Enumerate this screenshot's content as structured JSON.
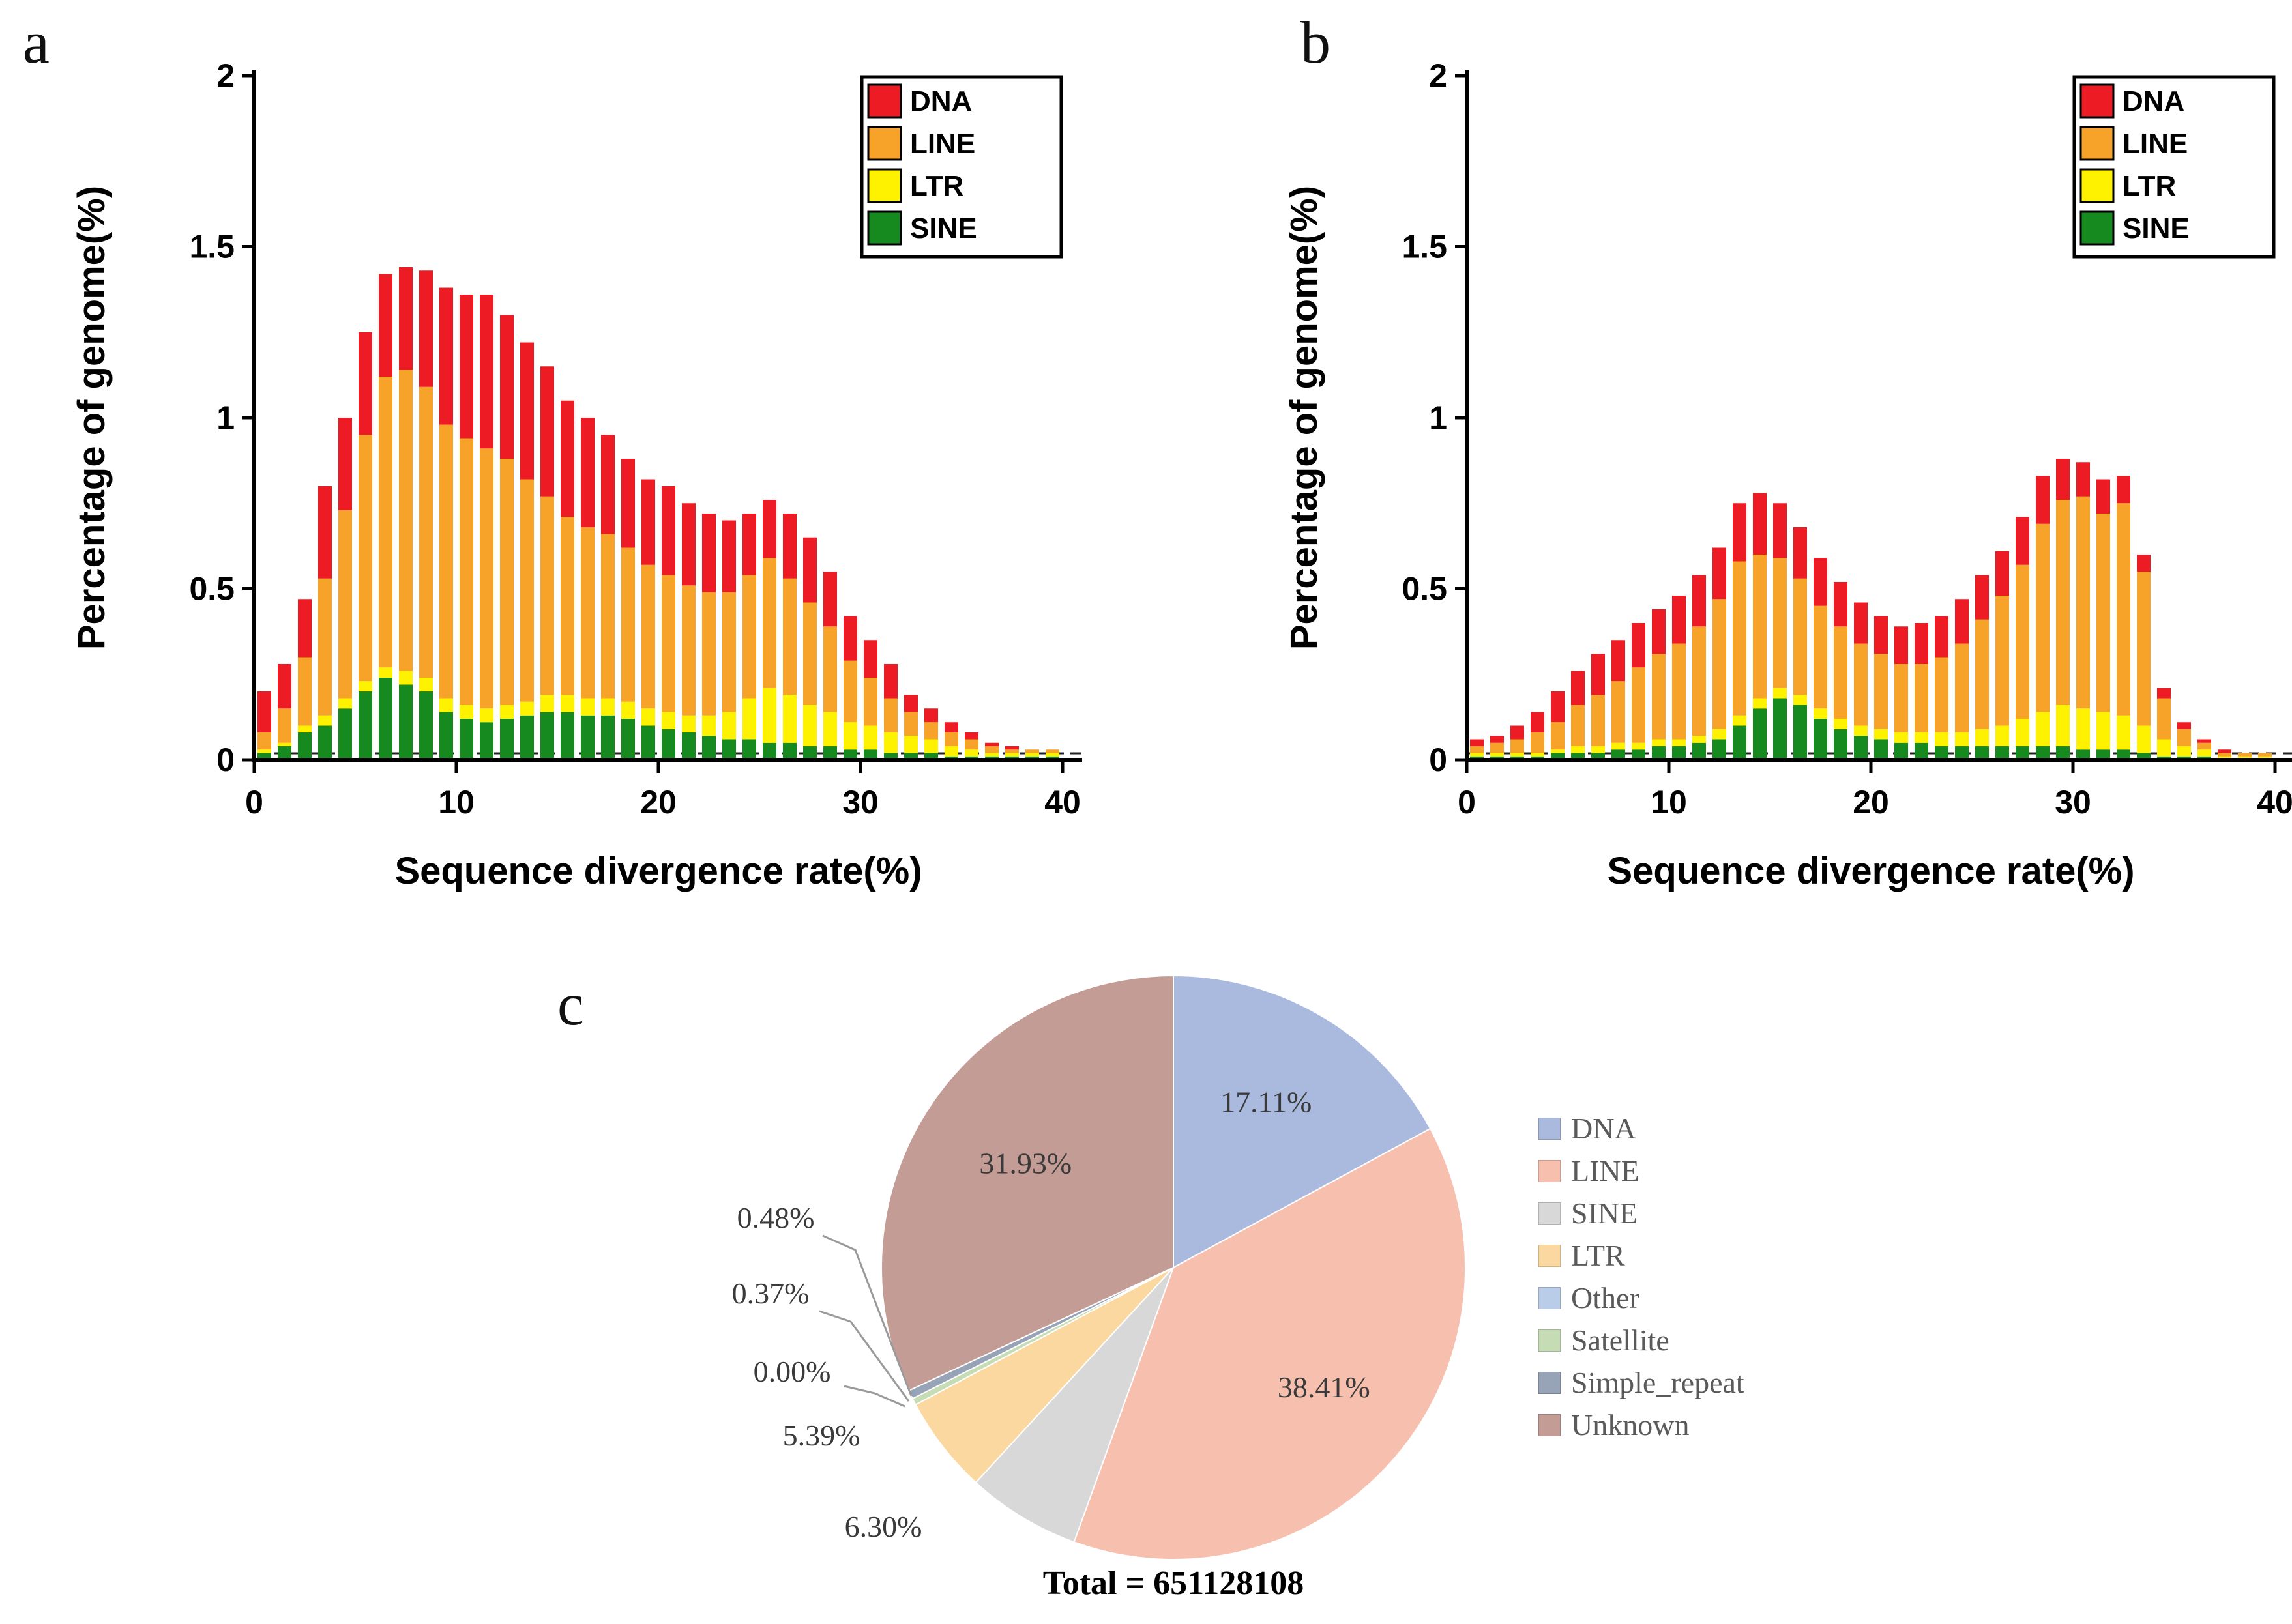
{
  "figure": {
    "panel_letters": {
      "a": "a",
      "b": "b",
      "c": "c"
    }
  },
  "chart_data": [
    {
      "id": "a",
      "type": "bar",
      "stacked": true,
      "title": "",
      "xlabel": "Sequence divergence rate(%)",
      "ylabel": "Percentage of genome(%)",
      "xlim": [
        0,
        40
      ],
      "ylim": [
        0,
        2
      ],
      "xticks": [
        0,
        10,
        20,
        30,
        40
      ],
      "yticks": [
        0,
        0.5,
        1,
        1.5,
        2
      ],
      "ytick_labels": [
        "0",
        "0.5",
        "1",
        "1.5",
        "2"
      ],
      "grid": false,
      "legend": [
        "DNA",
        "LINE",
        "LTR",
        "SINE"
      ],
      "legend_position": "top-right",
      "right_spine": false,
      "colors": {
        "DNA": "#ed1c24",
        "LINE": "#f7a229",
        "LTR": "#fff200",
        "SINE": "#168a1f"
      },
      "x": [
        1,
        2,
        3,
        4,
        5,
        6,
        7,
        8,
        9,
        10,
        11,
        12,
        13,
        14,
        15,
        16,
        17,
        18,
        19,
        20,
        21,
        22,
        23,
        24,
        25,
        26,
        27,
        28,
        29,
        30,
        31,
        32,
        33,
        34,
        35,
        36,
        37,
        38,
        39,
        40
      ],
      "series": [
        {
          "name": "SINE",
          "values": [
            0.02,
            0.04,
            0.08,
            0.1,
            0.15,
            0.2,
            0.24,
            0.22,
            0.2,
            0.14,
            0.12,
            0.11,
            0.12,
            0.13,
            0.14,
            0.14,
            0.13,
            0.13,
            0.12,
            0.1,
            0.09,
            0.08,
            0.07,
            0.06,
            0.06,
            0.05,
            0.05,
            0.04,
            0.04,
            0.03,
            0.03,
            0.02,
            0.02,
            0.02,
            0.01,
            0.01,
            0.01,
            0.01,
            0.01,
            0.01
          ]
        },
        {
          "name": "LTR",
          "values": [
            0.01,
            0.01,
            0.02,
            0.03,
            0.03,
            0.03,
            0.03,
            0.04,
            0.04,
            0.04,
            0.04,
            0.04,
            0.04,
            0.04,
            0.05,
            0.05,
            0.05,
            0.05,
            0.05,
            0.05,
            0.05,
            0.05,
            0.06,
            0.08,
            0.12,
            0.16,
            0.14,
            0.12,
            0.1,
            0.08,
            0.07,
            0.06,
            0.05,
            0.04,
            0.03,
            0.02,
            0.01,
            0.01,
            0.01,
            0.01
          ]
        },
        {
          "name": "LINE",
          "values": [
            0.05,
            0.1,
            0.2,
            0.4,
            0.55,
            0.72,
            0.85,
            0.88,
            0.85,
            0.8,
            0.78,
            0.76,
            0.72,
            0.65,
            0.58,
            0.52,
            0.5,
            0.48,
            0.45,
            0.42,
            0.4,
            0.38,
            0.36,
            0.35,
            0.36,
            0.38,
            0.34,
            0.3,
            0.25,
            0.18,
            0.14,
            0.1,
            0.07,
            0.05,
            0.04,
            0.03,
            0.02,
            0.01,
            0.01,
            0.01
          ]
        },
        {
          "name": "DNA",
          "values": [
            0.12,
            0.13,
            0.17,
            0.27,
            0.27,
            0.3,
            0.3,
            0.3,
            0.34,
            0.4,
            0.42,
            0.45,
            0.42,
            0.4,
            0.38,
            0.34,
            0.32,
            0.29,
            0.26,
            0.25,
            0.26,
            0.24,
            0.23,
            0.21,
            0.18,
            0.17,
            0.19,
            0.19,
            0.16,
            0.13,
            0.11,
            0.1,
            0.05,
            0.04,
            0.03,
            0.02,
            0.01,
            0.01,
            0.0,
            0.0
          ]
        }
      ]
    },
    {
      "id": "b",
      "type": "bar",
      "stacked": true,
      "title": "",
      "xlabel": "Sequence divergence rate(%)",
      "ylabel": "Percentage of genome(%)",
      "xlim": [
        0,
        40
      ],
      "ylim": [
        0,
        2
      ],
      "xticks": [
        0,
        10,
        20,
        30,
        40
      ],
      "yticks": [
        0,
        0.5,
        1,
        1.5,
        2
      ],
      "ytick_labels": [
        "0",
        "0.5",
        "1",
        "1.5",
        "2"
      ],
      "grid": false,
      "legend": [
        "DNA",
        "LINE",
        "LTR",
        "SINE"
      ],
      "legend_position": "top-right",
      "right_spine": true,
      "colors": {
        "DNA": "#ed1c24",
        "LINE": "#f7a229",
        "LTR": "#fff200",
        "SINE": "#168a1f"
      },
      "x": [
        1,
        2,
        3,
        4,
        5,
        6,
        7,
        8,
        9,
        10,
        11,
        12,
        13,
        14,
        15,
        16,
        17,
        18,
        19,
        20,
        21,
        22,
        23,
        24,
        25,
        26,
        27,
        28,
        29,
        30,
        31,
        32,
        33,
        34,
        35,
        36,
        37,
        38,
        39,
        40
      ],
      "series": [
        {
          "name": "SINE",
          "values": [
            0.01,
            0.01,
            0.01,
            0.01,
            0.02,
            0.02,
            0.02,
            0.03,
            0.03,
            0.04,
            0.04,
            0.05,
            0.06,
            0.1,
            0.15,
            0.18,
            0.16,
            0.12,
            0.09,
            0.07,
            0.06,
            0.05,
            0.05,
            0.04,
            0.04,
            0.04,
            0.04,
            0.04,
            0.04,
            0.04,
            0.03,
            0.03,
            0.03,
            0.02,
            0.01,
            0.01,
            0.01,
            0.0,
            0.0,
            0.0
          ]
        },
        {
          "name": "LTR",
          "values": [
            0.01,
            0.01,
            0.01,
            0.01,
            0.01,
            0.02,
            0.02,
            0.02,
            0.02,
            0.02,
            0.02,
            0.02,
            0.03,
            0.03,
            0.03,
            0.03,
            0.03,
            0.03,
            0.03,
            0.03,
            0.03,
            0.03,
            0.03,
            0.04,
            0.04,
            0.05,
            0.06,
            0.08,
            0.1,
            0.12,
            0.12,
            0.11,
            0.1,
            0.08,
            0.05,
            0.03,
            0.02,
            0.01,
            0.01,
            0.01
          ]
        },
        {
          "name": "LINE",
          "values": [
            0.02,
            0.03,
            0.04,
            0.06,
            0.08,
            0.12,
            0.15,
            0.18,
            0.22,
            0.25,
            0.28,
            0.32,
            0.38,
            0.45,
            0.42,
            0.38,
            0.34,
            0.3,
            0.27,
            0.24,
            0.22,
            0.2,
            0.2,
            0.22,
            0.26,
            0.32,
            0.38,
            0.45,
            0.55,
            0.6,
            0.62,
            0.58,
            0.62,
            0.45,
            0.12,
            0.05,
            0.02,
            0.01,
            0.01,
            0.01
          ]
        },
        {
          "name": "DNA",
          "values": [
            0.02,
            0.02,
            0.04,
            0.06,
            0.09,
            0.1,
            0.12,
            0.12,
            0.13,
            0.13,
            0.14,
            0.15,
            0.15,
            0.17,
            0.18,
            0.16,
            0.15,
            0.14,
            0.13,
            0.12,
            0.11,
            0.11,
            0.12,
            0.12,
            0.13,
            0.13,
            0.13,
            0.14,
            0.14,
            0.12,
            0.1,
            0.1,
            0.08,
            0.05,
            0.03,
            0.02,
            0.01,
            0.01,
            0.0,
            0.0
          ]
        }
      ]
    },
    {
      "id": "c",
      "type": "pie",
      "labels": [
        "DNA",
        "LINE",
        "SINE",
        "LTR",
        "Other",
        "Satellite",
        "Simple_repeat",
        "Unknown"
      ],
      "values": [
        17.11,
        38.41,
        6.3,
        5.39,
        0.0,
        0.37,
        0.48,
        31.93
      ],
      "slice_labels": [
        "17.11%",
        "38.41%",
        "6.30%",
        "5.39%",
        "0.00%",
        "0.37%",
        "0.48%",
        "31.93%"
      ],
      "colors": [
        "#a9bade",
        "#f6bfae",
        "#d8d8d8",
        "#fbd89f",
        "#b9cde8",
        "#c6dcb5",
        "#97a3b6",
        "#c49c96"
      ],
      "legend_position": "right",
      "total_label": "Total = 651128108"
    }
  ]
}
